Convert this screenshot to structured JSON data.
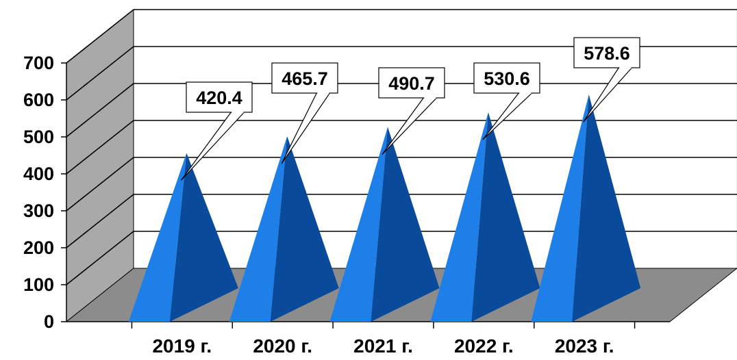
{
  "chart_data": {
    "type": "bar",
    "style": "3d-pyramid",
    "categories": [
      "2019 г.",
      "2020 г.",
      "2021 г.",
      "2022 г.",
      "2023 г."
    ],
    "values": [
      420.4,
      465.7,
      490.7,
      530.6,
      578.6
    ],
    "ylim": [
      0,
      700
    ],
    "yticks": [
      "0",
      "100",
      "200",
      "300",
      "400",
      "500",
      "600",
      "700"
    ],
    "title": "",
    "xlabel": "",
    "ylabel": "",
    "grid": true,
    "legend": "none",
    "colors": {
      "bar_light": "#1f7fe8",
      "bar_dark": "#0a4a9a",
      "back_wall": "#ffffff",
      "side_wall": "#a9a9a9",
      "floor": "#8c8c8c",
      "gridline": "#000000"
    }
  }
}
